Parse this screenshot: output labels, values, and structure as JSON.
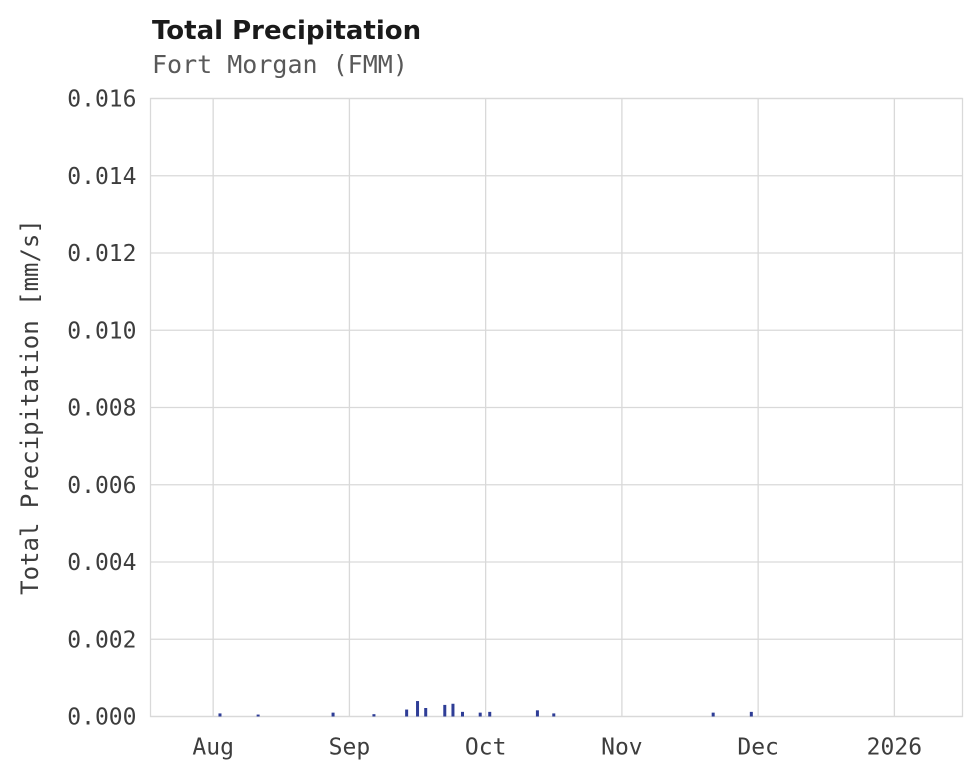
{
  "colors": {
    "background": "#ffffff",
    "grid": "#d9d9d9",
    "bar": "#2e3d96",
    "title": "#1a1a1a",
    "subtitle": "#595959",
    "tick_text": "#3d3d3d"
  },
  "chart_data": {
    "type": "bar",
    "title": "Total Precipitation",
    "subtitle": "Fort Morgan (FMM)",
    "xlabel": "",
    "ylabel": "Total Precipitation [mm/s]",
    "legend_position": "none",
    "grid": true,
    "ylim": [
      0,
      0.016
    ],
    "yticks": [
      {
        "value": 0.0,
        "label": "0.000"
      },
      {
        "value": 0.002,
        "label": "0.002"
      },
      {
        "value": 0.004,
        "label": "0.004"
      },
      {
        "value": 0.006,
        "label": "0.006"
      },
      {
        "value": 0.008,
        "label": "0.008"
      },
      {
        "value": 0.01,
        "label": "0.010"
      },
      {
        "value": 0.012,
        "label": "0.012"
      },
      {
        "value": 0.014,
        "label": "0.014"
      },
      {
        "value": 0.016,
        "label": "0.016"
      }
    ],
    "xlim_months": [
      -0.46,
      5.5
    ],
    "xticks": [
      {
        "pos": 0,
        "label": "Aug"
      },
      {
        "pos": 1,
        "label": "Sep"
      },
      {
        "pos": 2,
        "label": "Oct"
      },
      {
        "pos": 3,
        "label": "Nov"
      },
      {
        "pos": 4,
        "label": "Dec"
      },
      {
        "pos": 5,
        "label": "2026"
      }
    ],
    "series": [
      {
        "name": "Total Precipitation",
        "units": "mm/s",
        "points": [
          {
            "x": 0.05,
            "y": 8e-05
          },
          {
            "x": 0.33,
            "y": 5e-05
          },
          {
            "x": 0.88,
            "y": 0.0001
          },
          {
            "x": 1.18,
            "y": 6e-05
          },
          {
            "x": 1.42,
            "y": 0.00018
          },
          {
            "x": 1.5,
            "y": 0.0004
          },
          {
            "x": 1.56,
            "y": 0.00022
          },
          {
            "x": 1.7,
            "y": 0.0003
          },
          {
            "x": 1.76,
            "y": 0.00033
          },
          {
            "x": 1.83,
            "y": 0.00012
          },
          {
            "x": 1.96,
            "y": 0.0001
          },
          {
            "x": 2.03,
            "y": 0.00012
          },
          {
            "x": 2.38,
            "y": 0.00016
          },
          {
            "x": 2.5,
            "y": 8e-05
          },
          {
            "x": 3.67,
            "y": 0.0001
          },
          {
            "x": 3.95,
            "y": 0.00012
          }
        ]
      }
    ]
  }
}
